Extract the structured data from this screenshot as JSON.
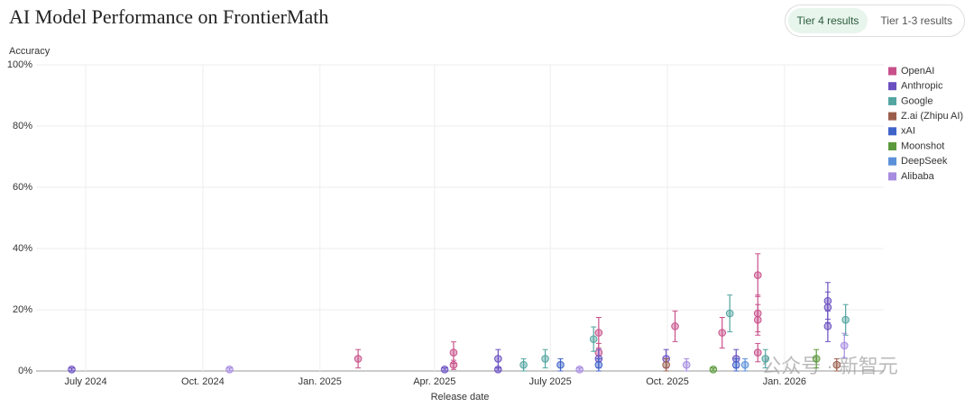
{
  "chart_data": {
    "type": "scatter",
    "title": "AI Model Performance on FrontierMath",
    "tabs": [
      "Tier 4 results",
      "Tier 1-3 results"
    ],
    "y_label": "Accuracy",
    "x_label": "Release date",
    "watermark": "公众号 · 新智元",
    "grid": true,
    "legend": "right",
    "xlim": [
      "2024-05-23",
      "2026-03-20"
    ],
    "xticks": [
      {
        "value": "2024-07-01",
        "label": "July 2024"
      },
      {
        "value": "2024-10-01",
        "label": "Oct. 2024"
      },
      {
        "value": "2025-01-01",
        "label": "Jan. 2025"
      },
      {
        "value": "2025-04-01",
        "label": "Apr. 2025"
      },
      {
        "value": "2025-07-01",
        "label": "July 2025"
      },
      {
        "value": "2025-10-01",
        "label": "Oct. 2025"
      },
      {
        "value": "2026-01-01",
        "label": "Jan. 2026"
      }
    ],
    "ylim": [
      0,
      100
    ],
    "yticks": [
      {
        "value": 0,
        "label": "0%"
      },
      {
        "value": 20,
        "label": "20%"
      },
      {
        "value": 40,
        "label": "40%"
      },
      {
        "value": 60,
        "label": "60%"
      },
      {
        "value": 80,
        "label": "80%"
      },
      {
        "value": 100,
        "label": "100%"
      }
    ],
    "series": [
      {
        "name": "OpenAI",
        "color": "#c8508a",
        "x": [
          "2025-01-31",
          "2025-04-16",
          "2025-04-16",
          "2025-08-08",
          "2025-08-08",
          "2025-10-07",
          "2025-11-13",
          "2025-12-11",
          "2025-12-11",
          "2025-12-11",
          "2025-12-11"
        ],
        "values": [
          4,
          2,
          6,
          12.5,
          6,
          14.6,
          12.5,
          31.3,
          18.8,
          16.7,
          6
        ],
        "errors": [
          3,
          1.5,
          3.5,
          5,
          3,
          5,
          5,
          7,
          6,
          5,
          3
        ]
      },
      {
        "name": "Anthropic",
        "color": "#6a4fc0",
        "x": [
          "2024-06-20",
          "2025-04-09",
          "2025-05-21",
          "2025-05-21",
          "2025-08-08",
          "2025-09-30",
          "2025-11-24",
          "2026-02-04",
          "2026-02-04",
          "2026-02-04"
        ],
        "values": [
          0.5,
          0.5,
          4,
          0.5,
          4,
          4,
          4,
          22.9,
          20.8,
          14.6
        ],
        "errors": [
          0.5,
          0.5,
          3,
          0.5,
          3,
          3,
          3,
          6,
          5,
          5
        ]
      },
      {
        "name": "Google",
        "color": "#52a5a0",
        "x": [
          "2025-06-10",
          "2025-06-27",
          "2025-08-04",
          "2025-11-19",
          "2025-12-17",
          "2026-02-18"
        ],
        "values": [
          2,
          4,
          10.4,
          18.8,
          4,
          16.7
        ],
        "errors": [
          2,
          3,
          4,
          6,
          3,
          5
        ]
      },
      {
        "name": "Z.ai (Zhipu AI)",
        "color": "#9a5d4c",
        "x": [
          "2025-09-30",
          "2026-02-11"
        ],
        "values": [
          2,
          2
        ],
        "errors": [
          2,
          2
        ]
      },
      {
        "name": "xAI",
        "color": "#3f63c9",
        "x": [
          "2025-07-09",
          "2025-08-08",
          "2025-11-24"
        ],
        "values": [
          2,
          2,
          2
        ],
        "errors": [
          2,
          2,
          2
        ]
      },
      {
        "name": "Moonshot",
        "color": "#5b9a3c",
        "x": [
          "2025-11-06",
          "2026-01-26"
        ],
        "values": [
          0.5,
          4
        ],
        "errors": [
          0.5,
          3
        ]
      },
      {
        "name": "DeepSeek",
        "color": "#5b90d8",
        "x": [
          "2025-12-01"
        ],
        "values": [
          2
        ],
        "errors": [
          2
        ]
      },
      {
        "name": "Alibaba",
        "color": "#a68be0",
        "x": [
          "2024-10-22",
          "2025-07-24",
          "2025-10-16",
          "2026-02-17"
        ],
        "values": [
          0.5,
          0.5,
          2,
          8.3
        ],
        "errors": [
          0.5,
          0.5,
          2,
          4
        ]
      }
    ]
  }
}
